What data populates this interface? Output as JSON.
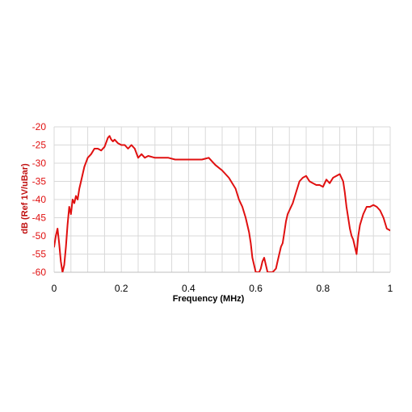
{
  "chart_data": {
    "type": "line",
    "xlabel": "Frequency (MHz)",
    "ylabel": "dB (Ref 1V/uBar)",
    "xlim": [
      0,
      1
    ],
    "ylim": [
      -60,
      -20
    ],
    "xticks": [
      "0",
      "0.2",
      "0.4",
      "0.6",
      "0.8",
      "1"
    ],
    "yticks": [
      "-20",
      "-25",
      "-30",
      "-35",
      "-40",
      "-45",
      "-50",
      "-55",
      "-60"
    ],
    "grid": true,
    "colors": {
      "line": "#e01010",
      "y_tick_labels": "#e01010",
      "y_axis_title": "#c01010",
      "x_text": "#000000",
      "grid": "#d9d9d9"
    },
    "series": [
      {
        "x": [
          0.0,
          0.005,
          0.01,
          0.015,
          0.02,
          0.025,
          0.03,
          0.035,
          0.04,
          0.045,
          0.05,
          0.055,
          0.06,
          0.065,
          0.07,
          0.075,
          0.08,
          0.09,
          0.1,
          0.11,
          0.12,
          0.13,
          0.14,
          0.15,
          0.16,
          0.165,
          0.17,
          0.175,
          0.18,
          0.19,
          0.2,
          0.21,
          0.22,
          0.23,
          0.24,
          0.25,
          0.26,
          0.27,
          0.28,
          0.3,
          0.32,
          0.34,
          0.36,
          0.38,
          0.4,
          0.42,
          0.44,
          0.46,
          0.47,
          0.48,
          0.5,
          0.52,
          0.54,
          0.55,
          0.56,
          0.57,
          0.575,
          0.58,
          0.585,
          0.59,
          0.6,
          0.61,
          0.615,
          0.62,
          0.625,
          0.63,
          0.635,
          0.64,
          0.65,
          0.66,
          0.665,
          0.67,
          0.675,
          0.68,
          0.685,
          0.69,
          0.695,
          0.7,
          0.71,
          0.72,
          0.73,
          0.74,
          0.75,
          0.76,
          0.77,
          0.78,
          0.79,
          0.8,
          0.81,
          0.82,
          0.83,
          0.84,
          0.85,
          0.86,
          0.865,
          0.87,
          0.875,
          0.88,
          0.885,
          0.89,
          0.895,
          0.9,
          0.905,
          0.91,
          0.92,
          0.93,
          0.94,
          0.95,
          0.96,
          0.97,
          0.98,
          0.99,
          1.0
        ],
        "y": [
          -53,
          -50,
          -48,
          -52,
          -57,
          -60,
          -58,
          -53,
          -47,
          -42,
          -44,
          -40,
          -41,
          -39,
          -40,
          -37,
          -35,
          -31,
          -28.5,
          -27.5,
          -26,
          -26,
          -26.5,
          -25.5,
          -23,
          -22.5,
          -23.5,
          -24,
          -23.5,
          -24.5,
          -25,
          -25,
          -26,
          -25,
          -26,
          -28.5,
          -27.5,
          -28.5,
          -28,
          -28.5,
          -28.5,
          -28.5,
          -29,
          -29,
          -29,
          -29,
          -29,
          -28.5,
          -29.5,
          -30.5,
          -32,
          -34,
          -37,
          -40,
          -42,
          -45,
          -47,
          -49,
          -52,
          -56,
          -60,
          -60,
          -59,
          -57,
          -56,
          -58,
          -60,
          -60,
          -60,
          -59,
          -57,
          -55,
          -53,
          -52,
          -49,
          -46,
          -44,
          -43,
          -41,
          -38,
          -35,
          -34,
          -33.5,
          -35,
          -35.5,
          -36,
          -36,
          -36.5,
          -34.5,
          -35.5,
          -34,
          -33.5,
          -33,
          -35,
          -38,
          -42,
          -45,
          -48,
          -50,
          -51,
          -53,
          -55,
          -50,
          -47,
          -44,
          -42,
          -42,
          -41.5,
          -42,
          -43,
          -45,
          -48,
          -48.5
        ]
      }
    ]
  }
}
